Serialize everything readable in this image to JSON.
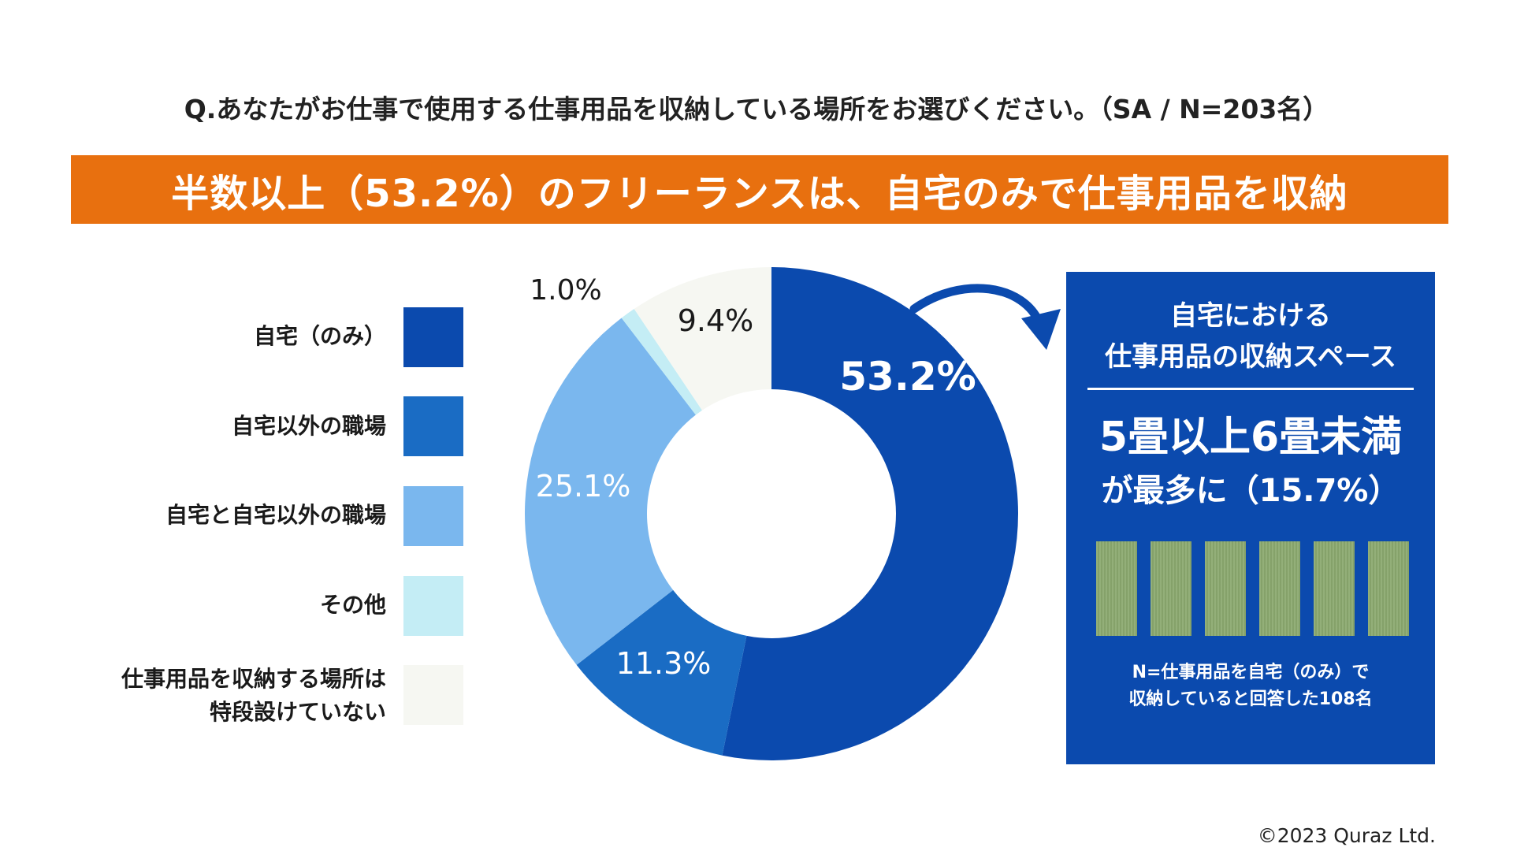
{
  "question": "Q.あなたがお仕事で使用する仕事用品を収納している場所をお選びください。（SA / N=203名）",
  "headline": "半数以上（53.2%）のフリーランスは、自宅のみで仕事用品を収納",
  "colors": {
    "banner": "#e8700f",
    "home_only": "#0b4aae",
    "work_outside": "#1a6cc4",
    "both": "#7ab7ee",
    "other": "#c4edf5",
    "none": "#f6f7f2",
    "info_box": "#0b4aae",
    "tatami": "#8aa86e"
  },
  "legend": [
    {
      "label": "自宅（のみ）",
      "color": "#0b4aae"
    },
    {
      "label": "自宅以外の職場",
      "color": "#1a6cc4"
    },
    {
      "label": "自宅と自宅以外の職場",
      "color": "#7ab7ee"
    },
    {
      "label": "その他",
      "color": "#c4edf5"
    },
    {
      "label_line1": "仕事用品を収納する場所は",
      "label_line2": "特段設けていない",
      "color": "#f6f7f2"
    }
  ],
  "chart_data": {
    "type": "pie",
    "variant": "donut",
    "title": "",
    "series": [
      {
        "name": "自宅（のみ）",
        "value": 53.2,
        "label": "53.2%",
        "color": "#0b4aae"
      },
      {
        "name": "自宅以外の職場",
        "value": 11.3,
        "label": "11.3%",
        "color": "#1a6cc4"
      },
      {
        "name": "自宅と自宅以外の職場",
        "value": 25.1,
        "label": "25.1%",
        "color": "#7ab7ee"
      },
      {
        "name": "その他",
        "value": 1.0,
        "label": "1.0%",
        "color": "#c4edf5"
      },
      {
        "name": "仕事用品を収納する場所は特段設けていない",
        "value": 9.4,
        "label": "9.4%",
        "color": "#f6f7f2"
      }
    ],
    "start": "12 o'clock",
    "direction": "clockwise",
    "legend_position": "left"
  },
  "info_box": {
    "title_line1": "自宅における",
    "title_line2": "仕事用品の収納スペース",
    "highlight": "5畳以上6畳未満",
    "highlight_sub": "が最多に（15.7%）",
    "tatami_count": 6,
    "note_line1": "N=仕事用品を自宅（のみ）で",
    "note_line2": "収納していると回答した108名"
  },
  "copyright": "©2023 Quraz Ltd."
}
